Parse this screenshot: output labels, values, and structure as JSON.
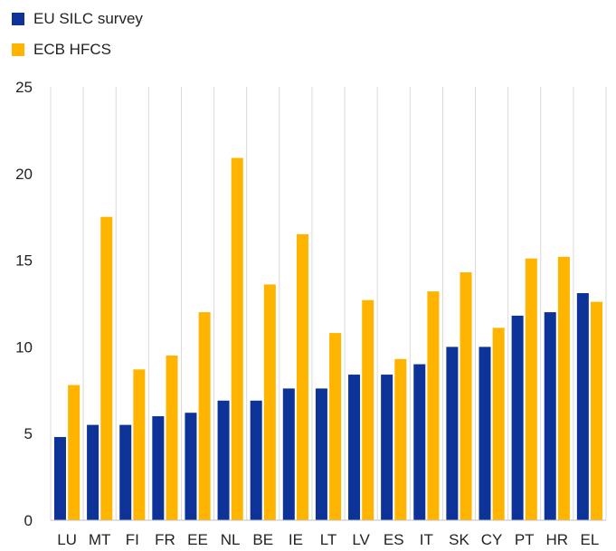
{
  "chart_data": {
    "type": "bar",
    "categories": [
      "LU",
      "MT",
      "FI",
      "FR",
      "EE",
      "NL",
      "BE",
      "IE",
      "LT",
      "LV",
      "ES",
      "IT",
      "SK",
      "CY",
      "PT",
      "HR",
      "EL"
    ],
    "series": [
      {
        "name": "EU SILC survey",
        "color": "#0d3399",
        "values": [
          4.8,
          5.5,
          5.5,
          6.0,
          6.2,
          6.9,
          6.9,
          7.6,
          7.6,
          8.4,
          8.4,
          9.0,
          10.0,
          10.0,
          11.8,
          12.0,
          13.1
        ]
      },
      {
        "name": "ECB HFCS",
        "color": "#ffb400",
        "values": [
          7.8,
          17.5,
          8.7,
          9.5,
          12.0,
          20.9,
          13.6,
          16.5,
          10.8,
          12.7,
          9.3,
          13.2,
          14.3,
          11.1,
          15.1,
          15.2,
          12.6
        ]
      }
    ],
    "yticks": [
      "0",
      "5",
      "10",
      "15",
      "20",
      "25"
    ],
    "ylim": [
      0,
      25
    ],
    "grid": "vertical",
    "legend": "top-left"
  }
}
